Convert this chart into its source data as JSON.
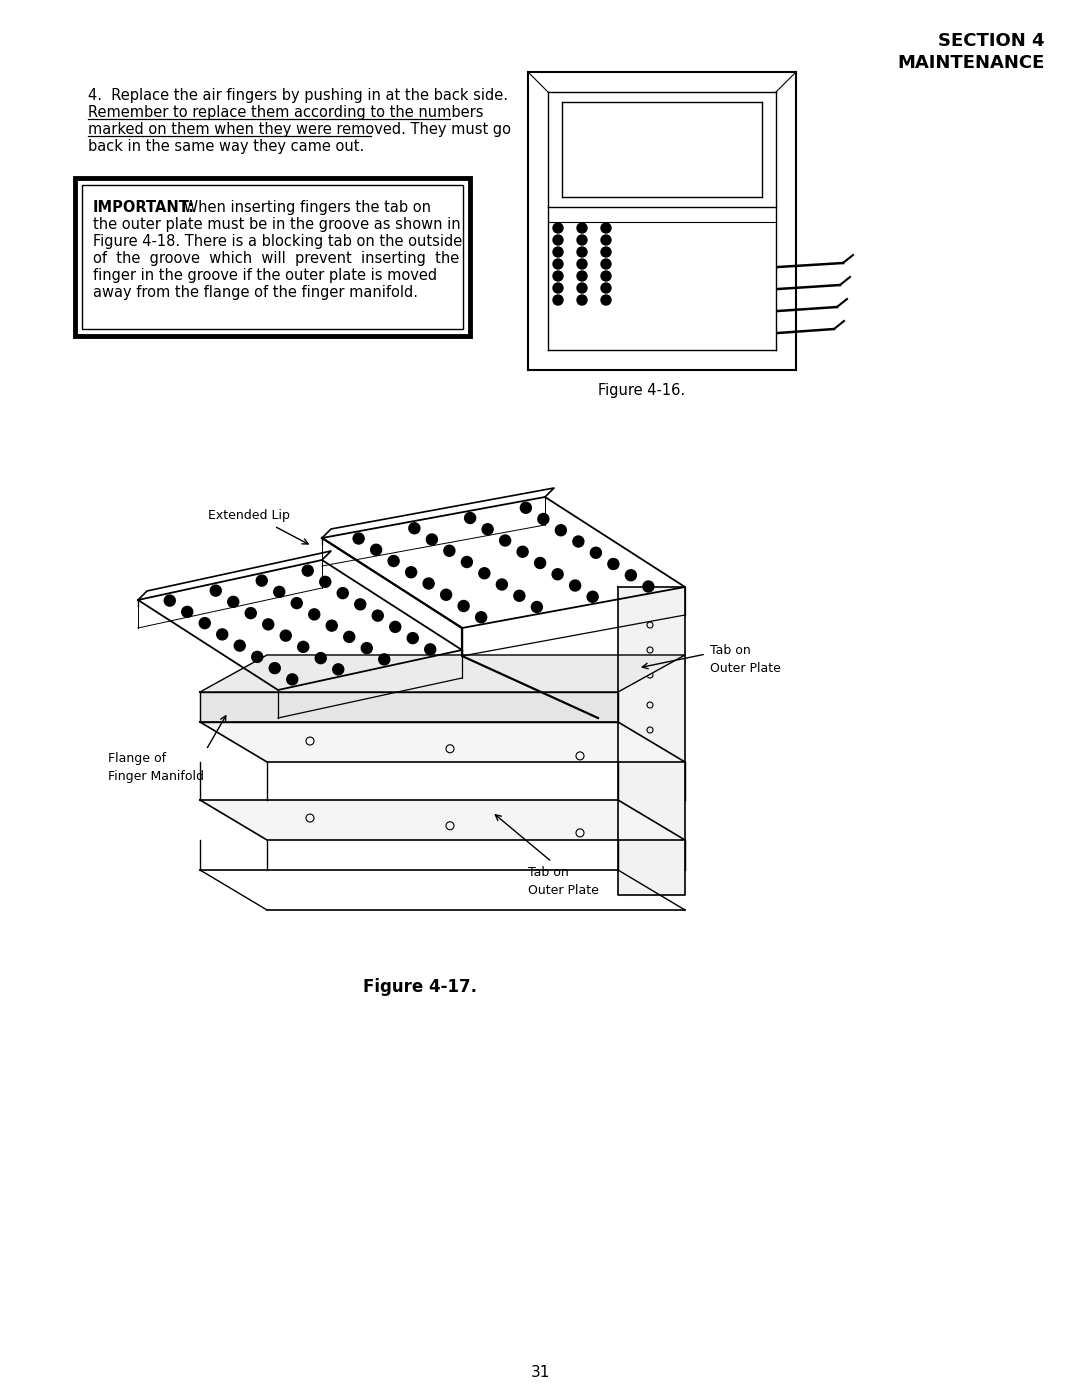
{
  "page_background": "#ffffff",
  "header_right_line1": "SECTION 4",
  "header_right_line2": "MAINTENANCE",
  "figure_16_caption": "Figure 4-16.",
  "figure_17_caption": "Figure 4-17.",
  "label_extended_lip": "Extended Lip",
  "label_tab_outer_plate_top": "Tab on\nOuter Plate",
  "label_flange_finger_manifold": "Flange of\nFinger Manifold",
  "label_tab_outer_plate_bottom": "Tab on\nOuter Plate",
  "page_number": "31",
  "text_color": "#000000",
  "body_line1": "4.  Replace the air fingers by pushing in at the back side.",
  "body_line2": "Remember to replace them according to the numbers",
  "body_line3": "marked on them when they were removed. They must go",
  "body_line4": "back in the same way they came out.",
  "imp_bold": "IMPORTANT:",
  "imp_rest_line1": " When inserting fingers the tab on",
  "imp_line2": "the outer plate must be in the groove as shown in",
  "imp_line3": "Figure 4-18. There is a blocking tab on the outside",
  "imp_line4": "of  the  groove  which  will  prevent  inserting  the",
  "imp_line5": "finger in the groove if the outer plate is moved",
  "imp_line6": "away from the flange of the finger manifold."
}
